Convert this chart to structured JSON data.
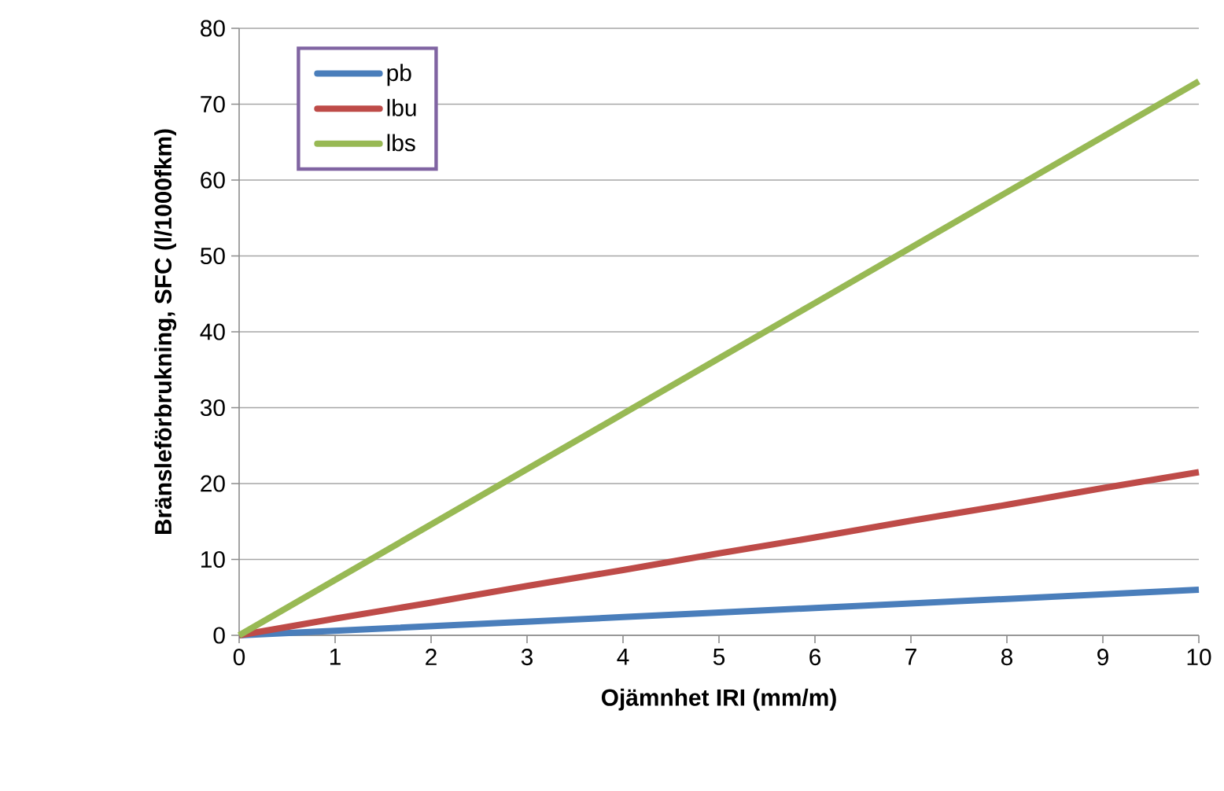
{
  "chart_data": {
    "type": "line",
    "xlabel": "Ojämnhet IRI (mm/m)",
    "ylabel": "Bränsleförbrukning, SFC (l/1000fkm)",
    "x": [
      0,
      1,
      2,
      3,
      4,
      5,
      6,
      7,
      8,
      9,
      10
    ],
    "series": [
      {
        "name": "pb",
        "color": "#4a7ebb",
        "values": [
          0,
          0.6,
          1.2,
          1.8,
          2.4,
          3.0,
          3.6,
          4.2,
          4.8,
          5.4,
          6.0
        ]
      },
      {
        "name": "lbu",
        "color": "#be4b48",
        "values": [
          0,
          2.2,
          4.3,
          6.5,
          8.6,
          10.8,
          12.9,
          15.1,
          17.2,
          19.4,
          21.5
        ]
      },
      {
        "name": "lbs",
        "color": "#98b954",
        "values": [
          0,
          7.3,
          14.6,
          21.9,
          29.2,
          36.5,
          43.8,
          51.1,
          58.4,
          65.7,
          73.0
        ]
      }
    ],
    "xlim": [
      0,
      10
    ],
    "xticks": [
      0,
      1,
      2,
      3,
      4,
      5,
      6,
      7,
      8,
      9,
      10
    ],
    "ylim": [
      0,
      80
    ],
    "yticks": [
      0,
      10,
      20,
      30,
      40,
      50,
      60,
      70,
      80
    ],
    "grid": "y",
    "legend": "top left",
    "marker": "none",
    "line_style": "solid"
  }
}
